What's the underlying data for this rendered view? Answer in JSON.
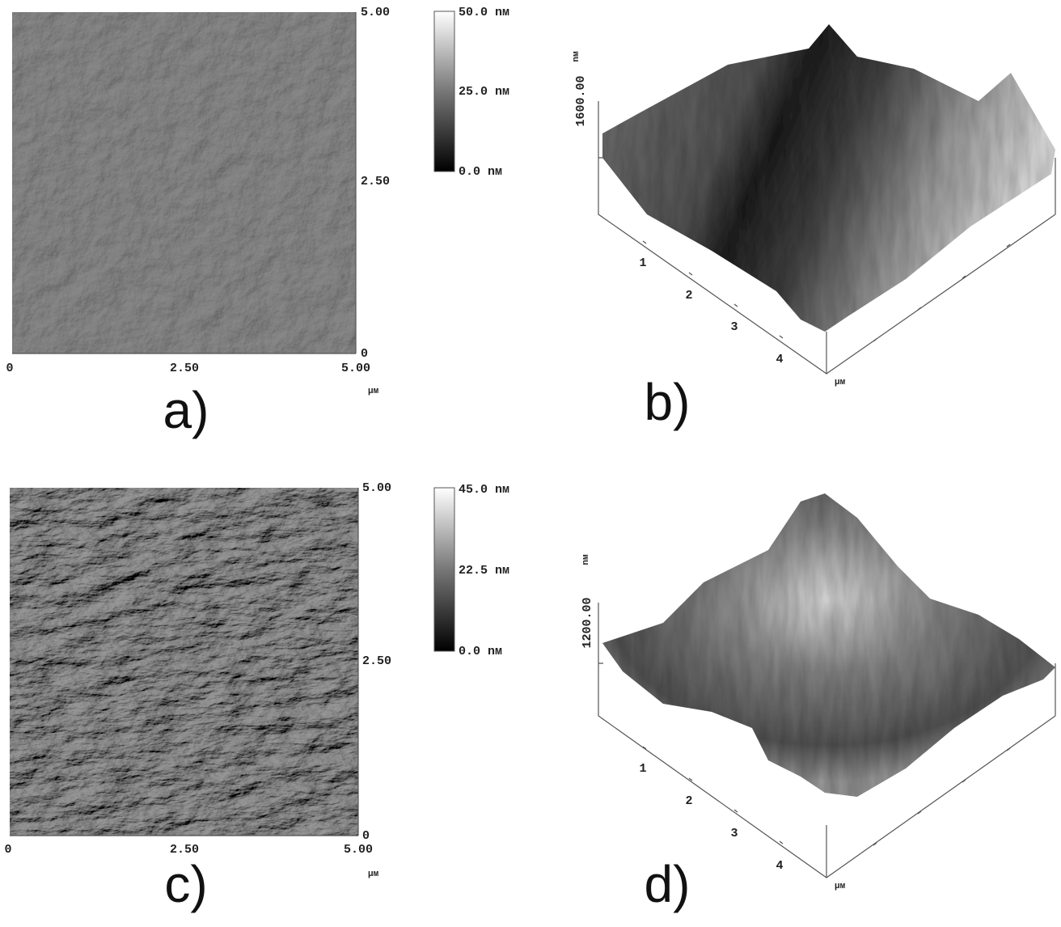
{
  "panels": [
    {
      "label": "a)",
      "x_ticks": [
        "0",
        "2.50",
        "5.00"
      ],
      "y_ticks": [
        "5.00",
        "2.50",
        "0"
      ],
      "unit": "μм",
      "colorbar": [
        "50.0 nм",
        "25.0 nм",
        "0.0 nм"
      ]
    },
    {
      "label": "b)",
      "z_tick": "1600.00",
      "z_unit": "nм",
      "x_ticks": [
        "1",
        "2",
        "3",
        "4"
      ],
      "unit": "μм"
    },
    {
      "label": "c)",
      "x_ticks": [
        "0",
        "2.50",
        "5.00"
      ],
      "y_ticks": [
        "5.00",
        "2.50",
        "0"
      ],
      "unit": "μм",
      "colorbar": [
        "45.0 nм",
        "22.5 nм",
        "0.0 nм"
      ]
    },
    {
      "label": "d)",
      "z_tick": "1200.00",
      "z_unit": "nм",
      "x_ticks": [
        "1",
        "2",
        "3",
        "4"
      ],
      "unit": "μм"
    }
  ]
}
